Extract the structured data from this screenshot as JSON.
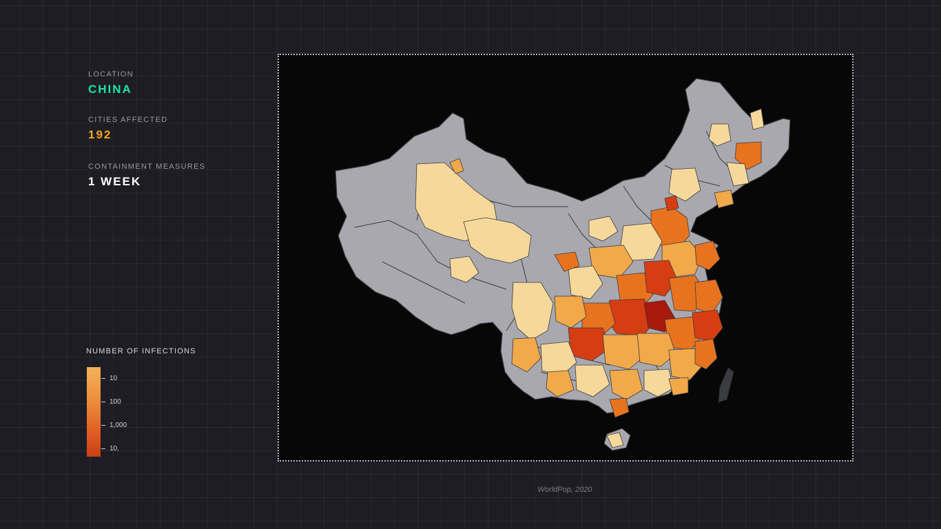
{
  "sidebar": {
    "location_label": "LOCATION",
    "location_value": "CHINA",
    "cities_label": "CITIES AFFECTED",
    "cities_value": "192",
    "containment_label": "CONTAINMENT MEASURES",
    "containment_value": "1 WEEK"
  },
  "colors": {
    "location": "#19e6a6",
    "cities": "#f5a623",
    "containment": "#ffffff",
    "land": "#a9a8ae",
    "border": "#3a3a40",
    "low": "#f6d99a",
    "mid": "#f1a94a",
    "high": "#e8731f",
    "very_high": "#d63d12",
    "max": "#a8190c"
  },
  "legend": {
    "title": "NUMBER OF INFECTIONS",
    "ticks": [
      "10",
      "100",
      "1,000",
      "10,"
    ]
  },
  "source": "WorldPop, 2020"
}
